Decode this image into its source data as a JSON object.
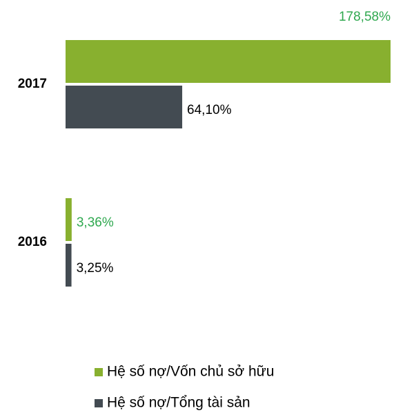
{
  "chart_data": {
    "type": "bar",
    "orientation": "horizontal",
    "categories": [
      "2017",
      "2016"
    ],
    "series": [
      {
        "name": "Hệ số nợ/Vốn chủ sở hữu",
        "color": "#88b02f",
        "label_color": "#2fa84f",
        "values": [
          178.58,
          3.36
        ],
        "value_labels": [
          "178,58%",
          "3,36%"
        ]
      },
      {
        "name": "Hệ số nợ/Tổng tài sản",
        "color": "#434b52",
        "label_color": "#000000",
        "values": [
          64.1,
          3.25
        ],
        "value_labels": [
          "64,10%",
          "3,25%"
        ]
      }
    ],
    "legend": "bottom"
  }
}
